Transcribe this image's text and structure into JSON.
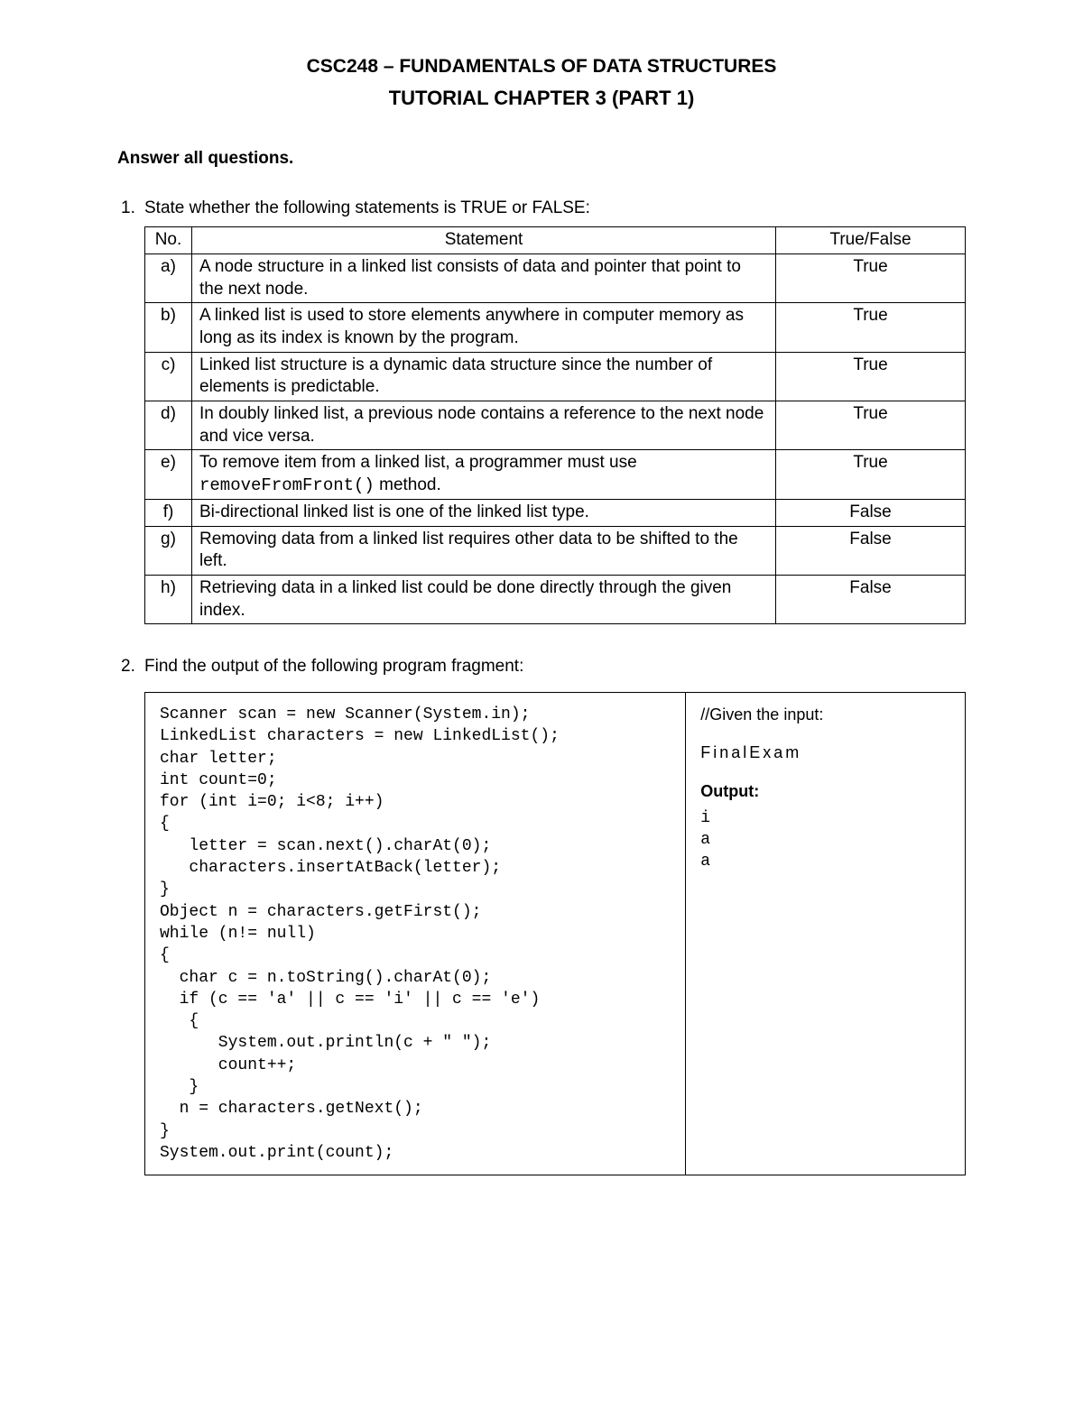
{
  "header": {
    "course_title": "CSC248 – FUNDAMENTALS OF DATA STRUCTURES",
    "tutorial_title": "TUTORIAL CHAPTER 3 (PART 1)"
  },
  "instruction": "Answer all questions.",
  "q1": {
    "number": "1.",
    "prompt": "State whether the following statements is TRUE or FALSE:",
    "headers": {
      "no": "No.",
      "statement": "Statement",
      "tf": "True/False"
    },
    "rows": [
      {
        "no": "a)",
        "statement": "A node structure in a linked list consists of data and pointer that point to the next node.",
        "tf": "True"
      },
      {
        "no": "b)",
        "statement": "A linked list is used to store elements anywhere in computer memory as long as its index is known by the program.",
        "tf": "True"
      },
      {
        "no": "c)",
        "statement": "Linked list structure is a dynamic data structure since the number of elements is predictable.",
        "tf": "True"
      },
      {
        "no": "d)",
        "statement": "In doubly linked list, a previous node contains a reference to the next node and vice versa.",
        "tf": "True"
      },
      {
        "no": "e)",
        "statement_pre": "To remove item from a linked list, a programmer must use ",
        "statement_code": "removeFromFront()",
        "statement_post": " method.",
        "tf": "True"
      },
      {
        "no": "f)",
        "statement": "Bi-directional linked list is one of the linked list type.",
        "tf": "False"
      },
      {
        "no": "g)",
        "statement": "Removing data from a linked list requires other data to be shifted to the left.",
        "tf": "False"
      },
      {
        "no": "h)",
        "statement": "Retrieving data in a linked list could be done directly through the given index.",
        "tf": "False"
      }
    ]
  },
  "q2": {
    "number": "2.",
    "prompt": "Find the output of the following program fragment:",
    "code": "Scanner scan = new Scanner(System.in);\nLinkedList characters = new LinkedList();\nchar letter;\nint count=0;\nfor (int i=0; i<8; i++)\n{\n   letter = scan.next().charAt(0);\n   characters.insertAtBack(letter);\n}\nObject n = characters.getFirst();\nwhile (n!= null)\n{\n  char c = n.toString().charAt(0);\n  if (c == 'a' || c == 'i' || c == 'e')\n   {\n      System.out.println(c + \" \");\n      count++;\n   }\n  n = characters.getNext();\n}\nSystem.out.print(count);\n",
    "given_label": "//Given the input:",
    "given_input": "FinalExam",
    "output_label": "Output:",
    "output_lines": "i\na\na"
  }
}
